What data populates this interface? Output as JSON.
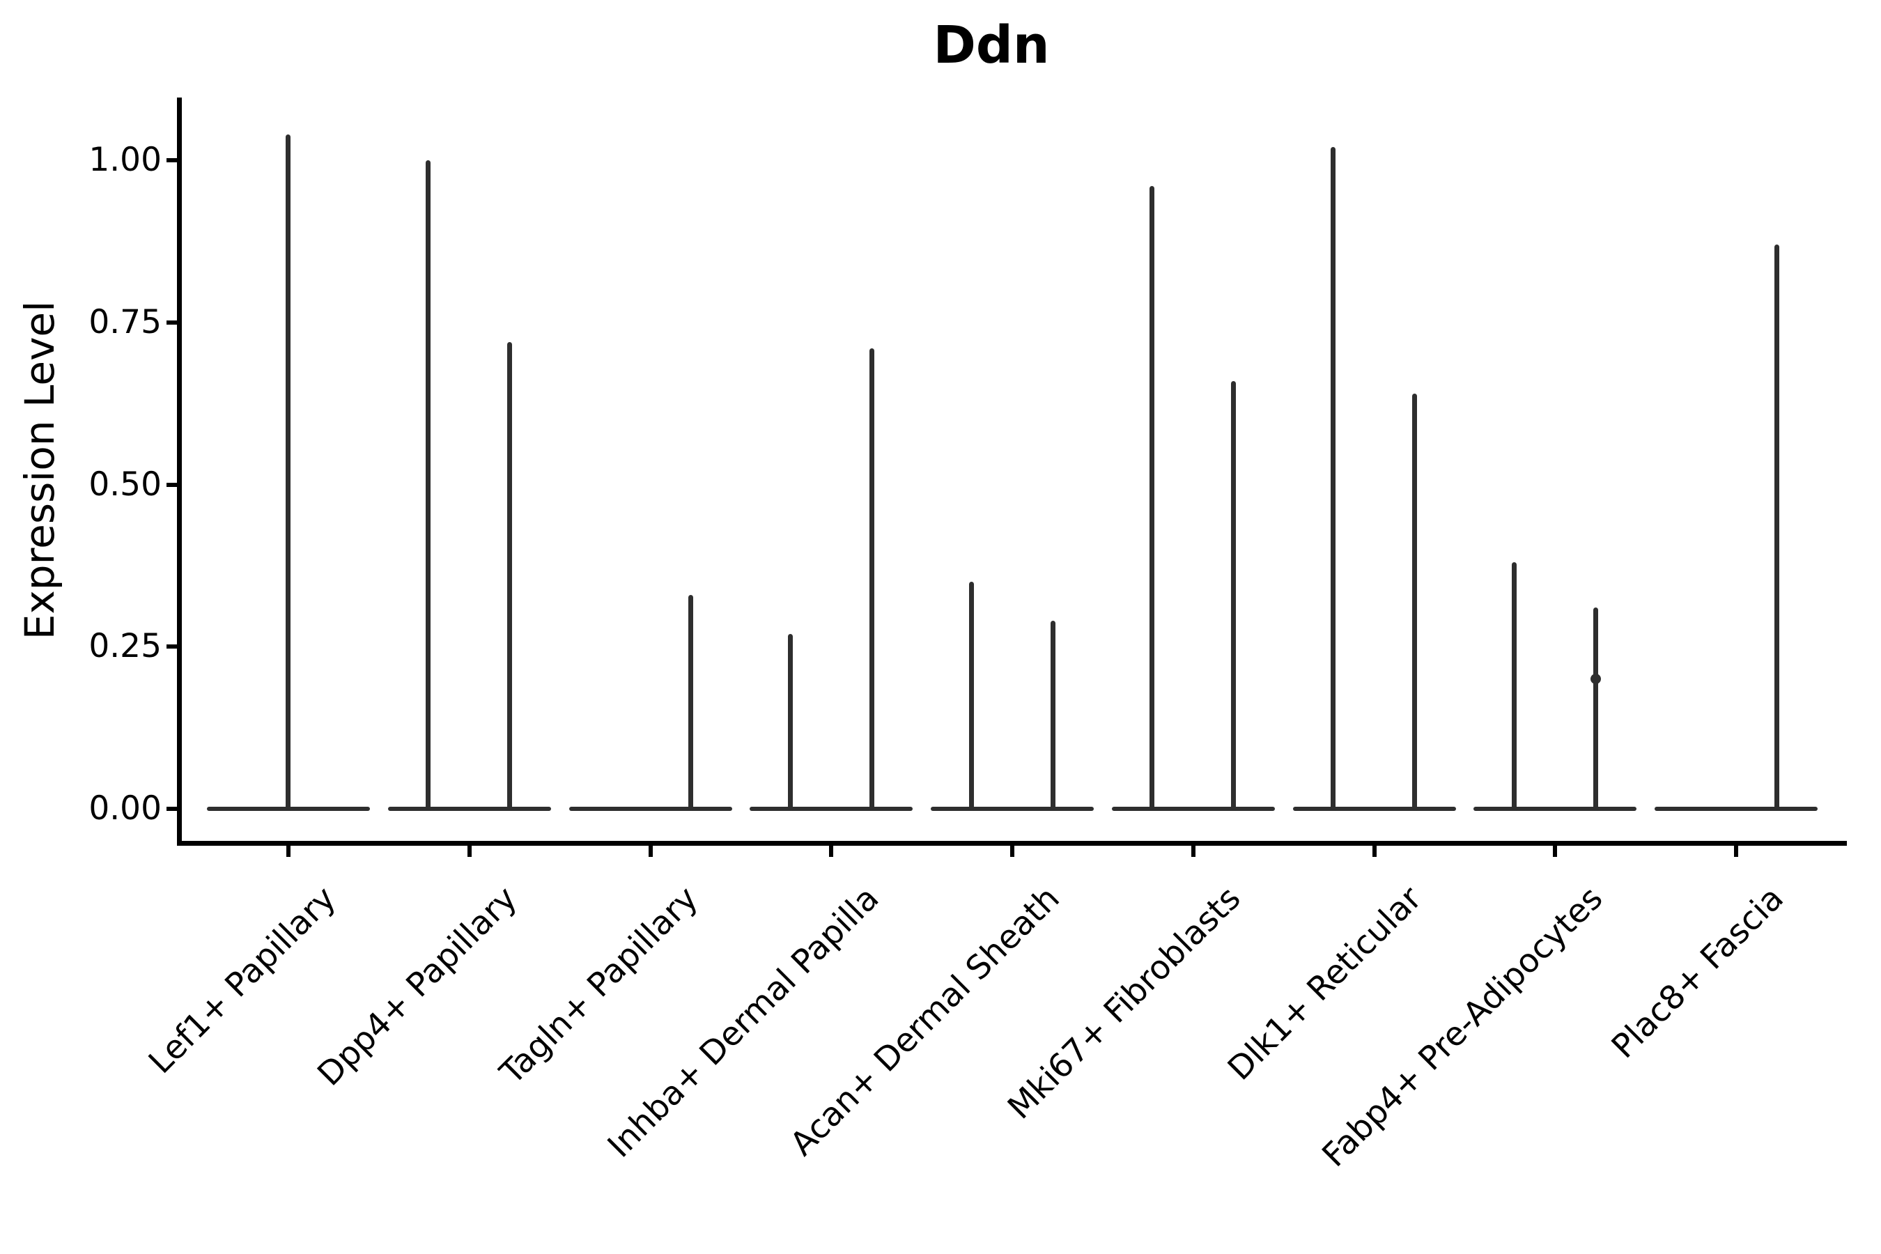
{
  "title": "Ddn",
  "y_axis": {
    "label": "Expression Level",
    "tick_labels": [
      "0.00",
      "0.25",
      "0.50",
      "0.75",
      "1.00"
    ]
  },
  "chart_data": {
    "type": "violin",
    "title": "Ddn",
    "xlabel": "",
    "ylabel": "Expression Level",
    "ylim": [
      -0.05,
      1.1
    ],
    "yticks": [
      0,
      0.25,
      0.5,
      0.75,
      1.0
    ],
    "grid": false,
    "legend": "none",
    "line_color": "#2e2e2e",
    "baseline_value": 0,
    "description": "Sparse-expression violins: each category shows a flat density bar at 0 with thin vertical spikes reaching the maximum expression value; categories with two spikes contain two half-width violins.",
    "categories": [
      "Lef1+ Papillary",
      "Dpp4+ Papillary",
      "Tagln+ Papillary",
      "Inhba+ Dermal Papilla",
      "Acan+ Dermal Sheath",
      "Mki67+ Fibroblasts",
      "Dlk1+ Reticular",
      "Fabp4+ Pre-Adipocytes",
      "Plac8+ Fascia"
    ],
    "series": [
      {
        "category": "Lef1+ Papillary",
        "violins": [
          {
            "position": "full",
            "max": 1.04
          }
        ]
      },
      {
        "category": "Dpp4+ Papillary",
        "violins": [
          {
            "position": "left",
            "max": 1.0
          },
          {
            "position": "right",
            "max": 0.72
          }
        ]
      },
      {
        "category": "Tagln+ Papillary",
        "violins": [
          {
            "position": "right",
            "max": 0.33
          }
        ]
      },
      {
        "category": "Inhba+ Dermal Papilla",
        "violins": [
          {
            "position": "left",
            "max": 0.27
          },
          {
            "position": "right",
            "max": 0.71
          }
        ]
      },
      {
        "category": "Acan+ Dermal Sheath",
        "violins": [
          {
            "position": "left",
            "max": 0.35
          },
          {
            "position": "right",
            "max": 0.29
          }
        ]
      },
      {
        "category": "Mki67+ Fibroblasts",
        "violins": [
          {
            "position": "left",
            "max": 0.96
          },
          {
            "position": "right",
            "max": 0.66
          }
        ]
      },
      {
        "category": "Dlk1+ Reticular",
        "violins": [
          {
            "position": "left",
            "max": 1.02
          },
          {
            "position": "right",
            "max": 0.64
          }
        ]
      },
      {
        "category": "Fabp4+ Pre-Adipocytes",
        "violins": [
          {
            "position": "left",
            "max": 0.38
          },
          {
            "position": "right",
            "max": 0.31,
            "bump": 0.2
          }
        ]
      },
      {
        "category": "Plac8+ Fascia",
        "violins": [
          {
            "position": "right",
            "max": 0.87
          }
        ]
      }
    ]
  }
}
